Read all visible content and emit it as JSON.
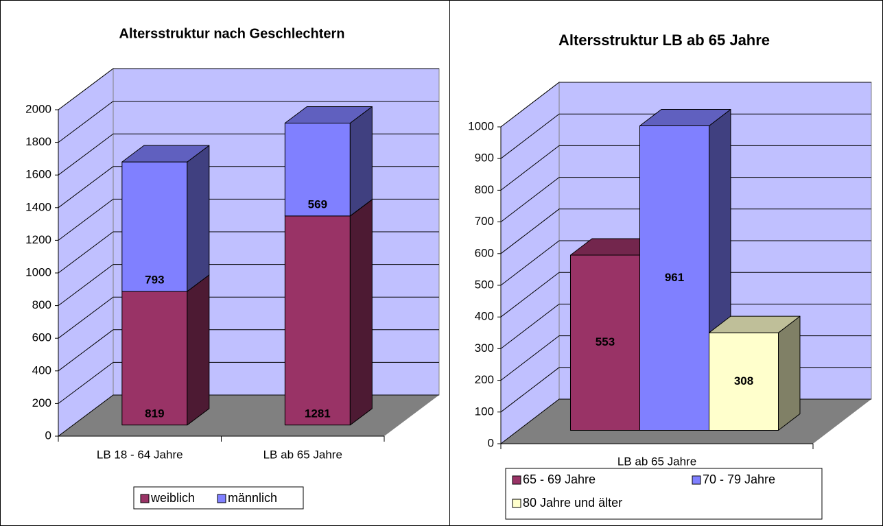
{
  "chart_data": [
    {
      "type": "bar",
      "stacked": true,
      "title": "Altersstruktur nach Geschlechtern",
      "categories": [
        "LB 18 - 64 Jahre",
        "LB ab 65 Jahre"
      ],
      "series": [
        {
          "name": "weiblich",
          "color": "#993366",
          "values": [
            819,
            1281
          ]
        },
        {
          "name": "männlich",
          "color": "#8080ff",
          "values": [
            793,
            569
          ]
        }
      ],
      "ylim": [
        0,
        2000
      ],
      "yticks": [
        0,
        200,
        400,
        600,
        800,
        1000,
        1200,
        1400,
        1600,
        1800,
        2000
      ],
      "grid": true,
      "legend": "bottom"
    },
    {
      "type": "bar",
      "stacked": false,
      "title": "Altersstruktur LB ab 65 Jahre",
      "categories": [
        "LB ab 65 Jahre"
      ],
      "series": [
        {
          "name": "65 - 69 Jahre",
          "color": "#993366",
          "values": [
            553
          ]
        },
        {
          "name": "70 - 79 Jahre",
          "color": "#8080ff",
          "values": [
            961
          ]
        },
        {
          "name": "80 Jahre und älter",
          "color": "#ffffcc",
          "values": [
            308
          ]
        }
      ],
      "ylim": [
        0,
        1000
      ],
      "yticks": [
        0,
        100,
        200,
        300,
        400,
        500,
        600,
        700,
        800,
        900,
        1000
      ],
      "grid": true,
      "legend": "bottom"
    }
  ]
}
